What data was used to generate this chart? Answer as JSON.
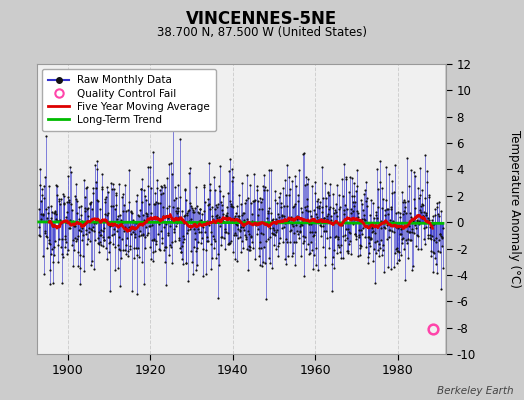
{
  "title": "VINCENNES-5NE",
  "subtitle": "38.700 N, 87.500 W (United States)",
  "ylabel": "Temperature Anomaly (°C)",
  "watermark": "Berkeley Earth",
  "year_start": 1893,
  "year_end": 1990,
  "ylim": [
    -10,
    12
  ],
  "yticks": [
    -10,
    -8,
    -6,
    -4,
    -2,
    0,
    2,
    4,
    6,
    8,
    10,
    12
  ],
  "xticks": [
    1900,
    1920,
    1940,
    1960,
    1980
  ],
  "bg_color": "#cccccc",
  "plot_bg_color": "#f0f0f0",
  "grid_color": "#d0d0d0",
  "raw_line_color": "#3333cc",
  "raw_marker_color": "#111111",
  "moving_avg_color": "#dd0000",
  "trend_color": "#00bb00",
  "qc_fail_color": "#ff44aa",
  "seed": 12345,
  "qc_fail_year": 1988.5,
  "qc_fail_value": -8.1
}
